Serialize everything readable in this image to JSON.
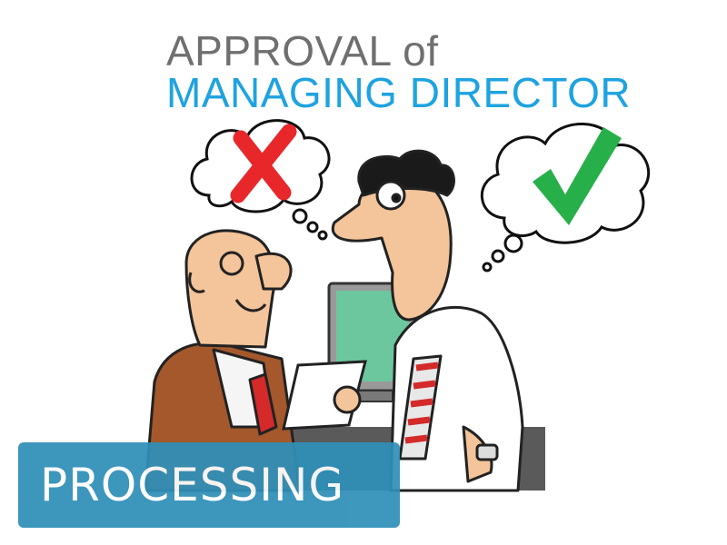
{
  "title": {
    "line1": "APPROVAL of",
    "line2": "MANAGING DIRECTOR"
  },
  "badge": {
    "label": "PROCESSING"
  },
  "colors": {
    "title_gray": "#6f6f6f",
    "title_blue": "#1ea3e0",
    "badge_bg": "#2f8fb8",
    "reject_red": "#e8272b",
    "approve_green": "#27b04a"
  },
  "icons": {
    "left_thought": "red-x-icon",
    "right_thought": "green-check-icon"
  }
}
